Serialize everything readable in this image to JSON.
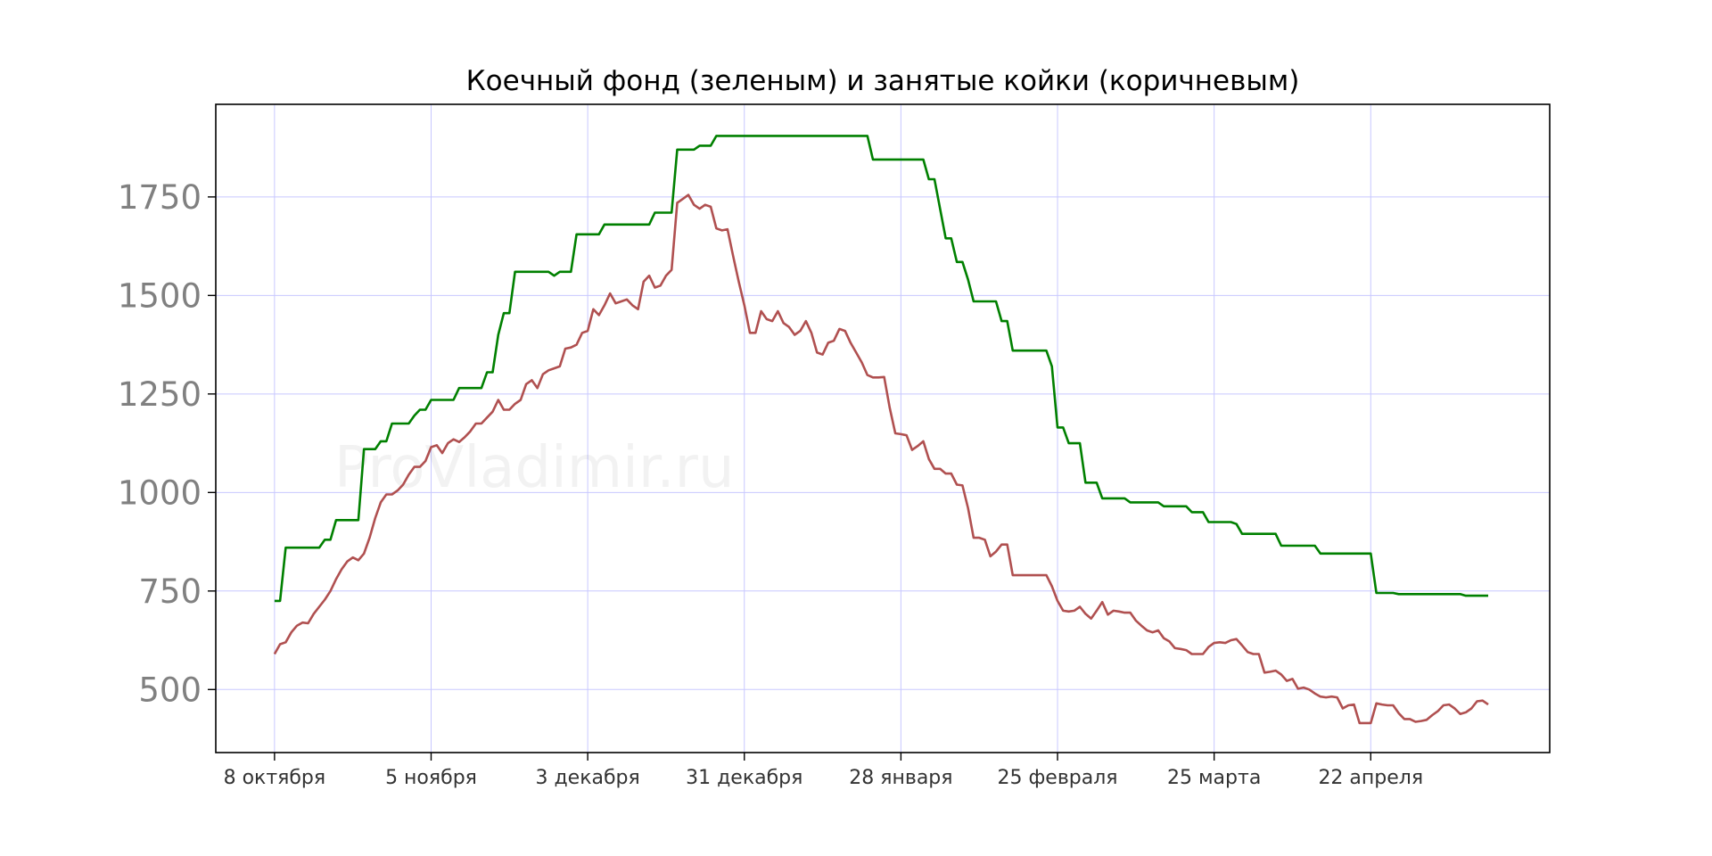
{
  "chart_data": {
    "type": "line",
    "title": "Коечный фонд (зеленым) и занятые койки (коричневым)",
    "watermark": "ProVladimir.ru",
    "xlabel": "",
    "ylabel": "",
    "x_ticks": [
      {
        "label": "8 октября",
        "day": 0
      },
      {
        "label": "5 ноября",
        "day": 28
      },
      {
        "label": "3 декабря",
        "day": 56
      },
      {
        "label": "31 декабря",
        "day": 84
      },
      {
        "label": "28 января",
        "day": 112
      },
      {
        "label": "25 февраля",
        "day": 140
      },
      {
        "label": "25 марта",
        "day": 168
      },
      {
        "label": "22 апреля",
        "day": 196
      }
    ],
    "y_ticks": [
      500,
      750,
      1000,
      1250,
      1500,
      1750
    ],
    "xlim": [
      -10.5,
      228
    ],
    "ylim": [
      340,
      1985
    ],
    "grid": true,
    "series": [
      {
        "color": "#008000",
        "points": [
          [
            0,
            725
          ],
          [
            1,
            725
          ],
          [
            2,
            860
          ],
          [
            8,
            860
          ],
          [
            9,
            880
          ],
          [
            10,
            880
          ],
          [
            11,
            930
          ],
          [
            15,
            930
          ],
          [
            16,
            1110
          ],
          [
            18,
            1110
          ],
          [
            19,
            1130
          ],
          [
            20,
            1130
          ],
          [
            21,
            1175
          ],
          [
            24,
            1175
          ],
          [
            25,
            1195
          ],
          [
            26,
            1210
          ],
          [
            27,
            1210
          ],
          [
            28,
            1235
          ],
          [
            32,
            1235
          ],
          [
            33,
            1265
          ],
          [
            37,
            1265
          ],
          [
            38,
            1305
          ],
          [
            39,
            1305
          ],
          [
            40,
            1400
          ],
          [
            41,
            1455
          ],
          [
            42,
            1455
          ],
          [
            43,
            1560
          ],
          [
            49,
            1560
          ],
          [
            50,
            1550
          ],
          [
            51,
            1560
          ],
          [
            53,
            1560
          ],
          [
            54,
            1655
          ],
          [
            58,
            1655
          ],
          [
            59,
            1680
          ],
          [
            67,
            1680
          ],
          [
            68,
            1710
          ],
          [
            71,
            1710
          ],
          [
            72,
            1870
          ],
          [
            75,
            1870
          ],
          [
            76,
            1880
          ],
          [
            78,
            1880
          ],
          [
            79,
            1905
          ],
          [
            106,
            1905
          ],
          [
            107,
            1845
          ],
          [
            116,
            1845
          ],
          [
            117,
            1795
          ],
          [
            118,
            1795
          ],
          [
            119,
            1720
          ],
          [
            120,
            1645
          ],
          [
            121,
            1645
          ],
          [
            122,
            1585
          ],
          [
            123,
            1585
          ],
          [
            124,
            1540
          ],
          [
            125,
            1485
          ],
          [
            129,
            1485
          ],
          [
            130,
            1435
          ],
          [
            131,
            1435
          ],
          [
            132,
            1360
          ],
          [
            138,
            1360
          ],
          [
            139,
            1320
          ],
          [
            140,
            1165
          ],
          [
            141,
            1165
          ],
          [
            142,
            1125
          ],
          [
            144,
            1125
          ],
          [
            145,
            1025
          ],
          [
            147,
            1025
          ],
          [
            148,
            985
          ],
          [
            152,
            985
          ],
          [
            153,
            975
          ],
          [
            158,
            975
          ],
          [
            159,
            965
          ],
          [
            163,
            965
          ],
          [
            164,
            950
          ],
          [
            166,
            950
          ],
          [
            167,
            925
          ],
          [
            171,
            925
          ],
          [
            172,
            920
          ],
          [
            173,
            895
          ],
          [
            179,
            895
          ],
          [
            180,
            865
          ],
          [
            186,
            865
          ],
          [
            187,
            845
          ],
          [
            195,
            845
          ],
          [
            196,
            845
          ],
          [
            197,
            745
          ],
          [
            200,
            745
          ],
          [
            201,
            742
          ],
          [
            212,
            742
          ],
          [
            213,
            738
          ],
          [
            217,
            738
          ]
        ]
      },
      {
        "color": "#b05050",
        "points": [
          [
            0,
            590
          ],
          [
            1,
            615
          ],
          [
            2,
            620
          ],
          [
            3,
            645
          ],
          [
            4,
            662
          ],
          [
            5,
            670
          ],
          [
            6,
            668
          ],
          [
            7,
            692
          ],
          [
            8,
            710
          ],
          [
            9,
            728
          ],
          [
            10,
            750
          ],
          [
            11,
            780
          ],
          [
            12,
            805
          ],
          [
            13,
            825
          ],
          [
            14,
            835
          ],
          [
            15,
            828
          ],
          [
            16,
            845
          ],
          [
            17,
            885
          ],
          [
            18,
            935
          ],
          [
            19,
            975
          ],
          [
            20,
            995
          ],
          [
            21,
            995
          ],
          [
            22,
            1005
          ],
          [
            23,
            1020
          ],
          [
            24,
            1045
          ],
          [
            25,
            1065
          ],
          [
            26,
            1065
          ],
          [
            27,
            1080
          ],
          [
            28,
            1115
          ],
          [
            29,
            1120
          ],
          [
            30,
            1100
          ],
          [
            31,
            1125
          ],
          [
            32,
            1135
          ],
          [
            33,
            1128
          ],
          [
            34,
            1140
          ],
          [
            35,
            1155
          ],
          [
            36,
            1175
          ],
          [
            37,
            1175
          ],
          [
            38,
            1190
          ],
          [
            39,
            1205
          ],
          [
            40,
            1235
          ],
          [
            41,
            1210
          ],
          [
            42,
            1210
          ],
          [
            43,
            1225
          ],
          [
            44,
            1235
          ],
          [
            45,
            1275
          ],
          [
            46,
            1285
          ],
          [
            47,
            1265
          ],
          [
            48,
            1300
          ],
          [
            49,
            1310
          ],
          [
            50,
            1315
          ],
          [
            51,
            1320
          ],
          [
            52,
            1365
          ],
          [
            53,
            1368
          ],
          [
            54,
            1375
          ],
          [
            55,
            1405
          ],
          [
            56,
            1410
          ],
          [
            57,
            1465
          ],
          [
            58,
            1450
          ],
          [
            59,
            1475
          ],
          [
            60,
            1505
          ],
          [
            61,
            1480
          ],
          [
            62,
            1485
          ],
          [
            63,
            1490
          ],
          [
            64,
            1475
          ],
          [
            65,
            1465
          ],
          [
            66,
            1535
          ],
          [
            67,
            1550
          ],
          [
            68,
            1520
          ],
          [
            69,
            1525
          ],
          [
            70,
            1550
          ],
          [
            71,
            1565
          ],
          [
            72,
            1735
          ],
          [
            73,
            1745
          ],
          [
            74,
            1755
          ],
          [
            75,
            1730
          ],
          [
            76,
            1720
          ],
          [
            77,
            1730
          ],
          [
            78,
            1725
          ],
          [
            79,
            1670
          ],
          [
            80,
            1665
          ],
          [
            81,
            1668
          ],
          [
            82,
            1600
          ],
          [
            83,
            1535
          ],
          [
            84,
            1475
          ],
          [
            85,
            1405
          ],
          [
            86,
            1405
          ],
          [
            87,
            1460
          ],
          [
            88,
            1440
          ],
          [
            89,
            1435
          ],
          [
            90,
            1460
          ],
          [
            91,
            1430
          ],
          [
            92,
            1420
          ],
          [
            93,
            1400
          ],
          [
            94,
            1410
          ],
          [
            95,
            1435
          ],
          [
            96,
            1405
          ],
          [
            97,
            1355
          ],
          [
            98,
            1350
          ],
          [
            99,
            1380
          ],
          [
            100,
            1385
          ],
          [
            101,
            1415
          ],
          [
            102,
            1410
          ],
          [
            103,
            1380
          ],
          [
            104,
            1355
          ],
          [
            105,
            1330
          ],
          [
            106,
            1298
          ],
          [
            107,
            1292
          ],
          [
            108,
            1292
          ],
          [
            109,
            1293
          ],
          [
            110,
            1215
          ],
          [
            111,
            1150
          ],
          [
            112,
            1148
          ],
          [
            113,
            1145
          ],
          [
            114,
            1108
          ],
          [
            115,
            1118
          ],
          [
            116,
            1130
          ],
          [
            117,
            1085
          ],
          [
            118,
            1060
          ],
          [
            119,
            1060
          ],
          [
            120,
            1048
          ],
          [
            121,
            1048
          ],
          [
            122,
            1020
          ],
          [
            123,
            1018
          ],
          [
            124,
            960
          ],
          [
            125,
            885
          ],
          [
            126,
            885
          ],
          [
            127,
            880
          ],
          [
            128,
            838
          ],
          [
            129,
            850
          ],
          [
            130,
            868
          ],
          [
            131,
            868
          ],
          [
            132,
            790
          ],
          [
            138,
            790
          ],
          [
            139,
            762
          ],
          [
            140,
            725
          ],
          [
            141,
            700
          ],
          [
            142,
            698
          ],
          [
            143,
            700
          ],
          [
            144,
            710
          ],
          [
            145,
            692
          ],
          [
            146,
            680
          ],
          [
            147,
            700
          ],
          [
            148,
            722
          ],
          [
            149,
            690
          ],
          [
            150,
            700
          ],
          [
            151,
            698
          ],
          [
            152,
            695
          ],
          [
            153,
            695
          ],
          [
            154,
            675
          ],
          [
            155,
            662
          ],
          [
            156,
            650
          ],
          [
            157,
            645
          ],
          [
            158,
            650
          ],
          [
            159,
            630
          ],
          [
            160,
            622
          ],
          [
            161,
            605
          ],
          [
            162,
            603
          ],
          [
            163,
            600
          ],
          [
            164,
            590
          ],
          [
            165,
            590
          ],
          [
            166,
            590
          ],
          [
            167,
            608
          ],
          [
            168,
            618
          ],
          [
            169,
            620
          ],
          [
            170,
            618
          ],
          [
            171,
            625
          ],
          [
            172,
            628
          ],
          [
            173,
            612
          ],
          [
            174,
            595
          ],
          [
            175,
            590
          ],
          [
            176,
            590
          ],
          [
            177,
            543
          ],
          [
            178,
            545
          ],
          [
            179,
            548
          ],
          [
            180,
            538
          ],
          [
            181,
            522
          ],
          [
            182,
            527
          ],
          [
            183,
            502
          ],
          [
            184,
            505
          ],
          [
            185,
            500
          ],
          [
            186,
            490
          ],
          [
            187,
            482
          ],
          [
            188,
            480
          ],
          [
            189,
            482
          ],
          [
            190,
            480
          ],
          [
            191,
            452
          ],
          [
            192,
            460
          ],
          [
            193,
            462
          ],
          [
            194,
            415
          ],
          [
            195,
            415
          ],
          [
            196,
            415
          ],
          [
            197,
            465
          ],
          [
            198,
            462
          ],
          [
            199,
            460
          ],
          [
            200,
            460
          ],
          [
            201,
            440
          ],
          [
            202,
            425
          ],
          [
            203,
            425
          ],
          [
            204,
            418
          ],
          [
            205,
            420
          ],
          [
            206,
            423
          ],
          [
            207,
            435
          ],
          [
            208,
            445
          ],
          [
            209,
            460
          ],
          [
            210,
            462
          ],
          [
            211,
            452
          ],
          [
            212,
            438
          ],
          [
            213,
            442
          ],
          [
            214,
            452
          ],
          [
            215,
            470
          ],
          [
            216,
            472
          ],
          [
            217,
            462
          ]
        ]
      }
    ]
  }
}
